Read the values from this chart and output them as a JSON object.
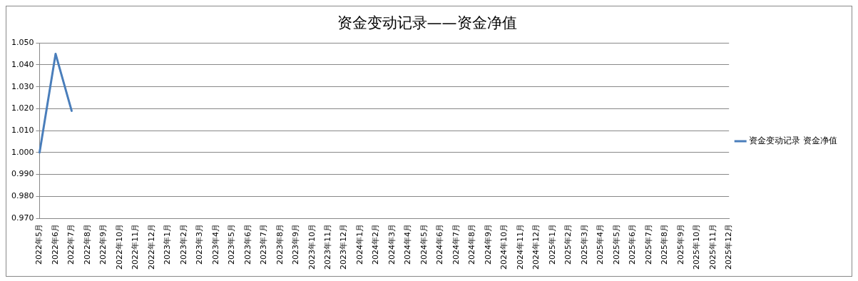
{
  "chart_data": {
    "type": "line",
    "title": "资金变动记录——资金净值",
    "categories": [
      "2022年5月",
      "2022年6月",
      "2022年7月",
      "2022年8月",
      "2022年9月",
      "2022年10月",
      "2022年11月",
      "2022年12月",
      "2023年1月",
      "2023年2月",
      "2023年3月",
      "2023年4月",
      "2023年5月",
      "2023年6月",
      "2023年7月",
      "2023年8月",
      "2023年9月",
      "2023年10月",
      "2023年11月",
      "2023年12月",
      "2024年1月",
      "2024年2月",
      "2024年3月",
      "2024年4月",
      "2024年5月",
      "2024年6月",
      "2024年7月",
      "2024年8月",
      "2024年9月",
      "2024年10月",
      "2024年11月",
      "2024年12月",
      "2025年1月",
      "2025年2月",
      "2025年3月",
      "2025年4月",
      "2025年5月",
      "2025年6月",
      "2025年7月",
      "2025年8月",
      "2025年9月",
      "2025年10月",
      "2025年11月",
      "2025年12月"
    ],
    "series": [
      {
        "name": "资金变动记录 资金净值",
        "color": "#4a7ebb",
        "values": [
          1.0,
          1.045,
          1.019,
          null,
          null,
          null,
          null,
          null,
          null,
          null,
          null,
          null,
          null,
          null,
          null,
          null,
          null,
          null,
          null,
          null,
          null,
          null,
          null,
          null,
          null,
          null,
          null,
          null,
          null,
          null,
          null,
          null,
          null,
          null,
          null,
          null,
          null,
          null,
          null,
          null,
          null,
          null,
          null,
          null
        ]
      }
    ],
    "ylim": [
      0.97,
      1.05
    ],
    "yticks": [
      {
        "value": 0.97,
        "label": "0.970"
      },
      {
        "value": 0.98,
        "label": "0.980"
      },
      {
        "value": 0.99,
        "label": "0.990"
      },
      {
        "value": 1.0,
        "label": "1.000"
      },
      {
        "value": 1.01,
        "label": "1.010"
      },
      {
        "value": 1.02,
        "label": "1.020"
      },
      {
        "value": 1.03,
        "label": "1.030"
      },
      {
        "value": 1.04,
        "label": "1.040"
      },
      {
        "value": 1.05,
        "label": "1.050"
      }
    ],
    "grid": "y",
    "legend": "right",
    "marker": "none",
    "line_style": "solid"
  }
}
